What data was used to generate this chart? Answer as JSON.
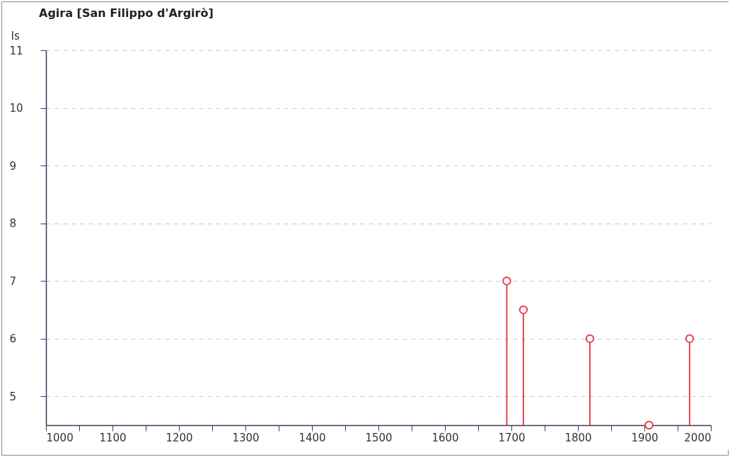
{
  "chart_data": {
    "type": "lollipop",
    "title": "Agira [San Filippo d'Argirò]",
    "ylabel": "Is",
    "x": [
      1693,
      1718,
      1818,
      1907,
      1968
    ],
    "values": [
      7,
      6.5,
      6,
      4.5,
      6
    ],
    "color": "#e8404a",
    "marker": "circle",
    "xlim": [
      1000,
      2000
    ],
    "xticks": [
      1000,
      {
        "value": 1050,
        "label": null
      },
      1100,
      {
        "value": 1150,
        "label": null
      },
      1200,
      {
        "value": 1250,
        "label": null
      },
      1300,
      {
        "value": 1350,
        "label": null
      },
      1400,
      {
        "value": 1450,
        "label": null
      },
      1500,
      {
        "value": 1550,
        "label": null
      },
      1600,
      {
        "value": 1650,
        "label": null
      },
      1700,
      {
        "value": 1750,
        "label": null
      },
      1800,
      {
        "value": 1850,
        "label": null
      },
      1900,
      {
        "value": 1950,
        "label": null
      },
      2000
    ],
    "ylim": [
      4.5,
      11
    ],
    "yticks": [
      5,
      6,
      7,
      8,
      9,
      10,
      11
    ],
    "grid": "y"
  }
}
